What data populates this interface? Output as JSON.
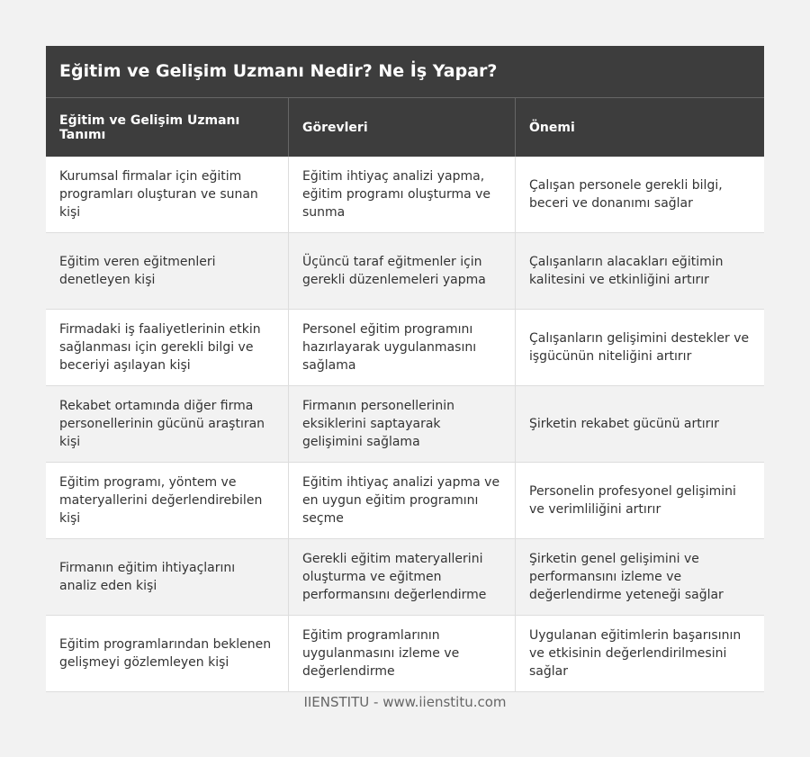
{
  "title": "Eğitim ve Gelişim Uzmanı Nedir? Ne İş Yapar?",
  "headers": [
    "Eğitim ve Gelişim Uzmanı Tanımı",
    "Görevleri",
    "Önemi"
  ],
  "rows": [
    [
      "Kurumsal firmalar için eğitim programları oluşturan ve sunan kişi",
      "Eğitim ihtiyaç analizi yapma, eğitim programı oluşturma ve sunma",
      "Çalışan personele gerekli bilgi, beceri ve donanımı sağlar"
    ],
    [
      "Eğitim veren eğitmenleri denetleyen kişi",
      "Üçüncü taraf eğitmenler için gerekli düzenlemeleri yapma",
      "Çalışanların alacakları eğitimin kalitesini ve etkinliğini artırır"
    ],
    [
      "Firmadaki iş faaliyetlerinin etkin sağlanması için gerekli bilgi ve beceriyi aşılayan kişi",
      "Personel eğitim programını hazırlayarak uygulanmasını sağlama",
      "Çalışanların gelişimini destekler ve işgücünün niteliğini artırır"
    ],
    [
      "Rekabet ortamında diğer firma personellerinin gücünü araştıran kişi",
      "Firmanın personellerinin eksiklerini saptayarak gelişimini sağlama",
      "Şirketin rekabet gücünü artırır"
    ],
    [
      "Eğitim programı, yöntem ve materyallerini değerlendirebilen kişi",
      "Eğitim ihtiyaç analizi yapma ve en uygun eğitim programını seçme",
      "Personelin profesyonel gelişimini ve verimliliğini artırır"
    ],
    [
      "Firmanın eğitim ihtiyaçlarını analiz eden kişi",
      "Gerekli eğitim materyallerini oluşturma ve eğitmen performansını değerlendirme",
      "Şirketin genel gelişimini ve performansını izleme ve değerlendirme yeteneği sağlar"
    ],
    [
      "Eğitim programlarından beklenen gelişmeyi gözlemleyen kişi",
      "Eğitim programlarının uygulanmasını izleme ve değerlendirme",
      "Uygulanan eğitimlerin başarısının ve etkisinin değerlendirilmesini sağlar"
    ]
  ],
  "footer": "IIENSTITU - www.iienstitu.com"
}
